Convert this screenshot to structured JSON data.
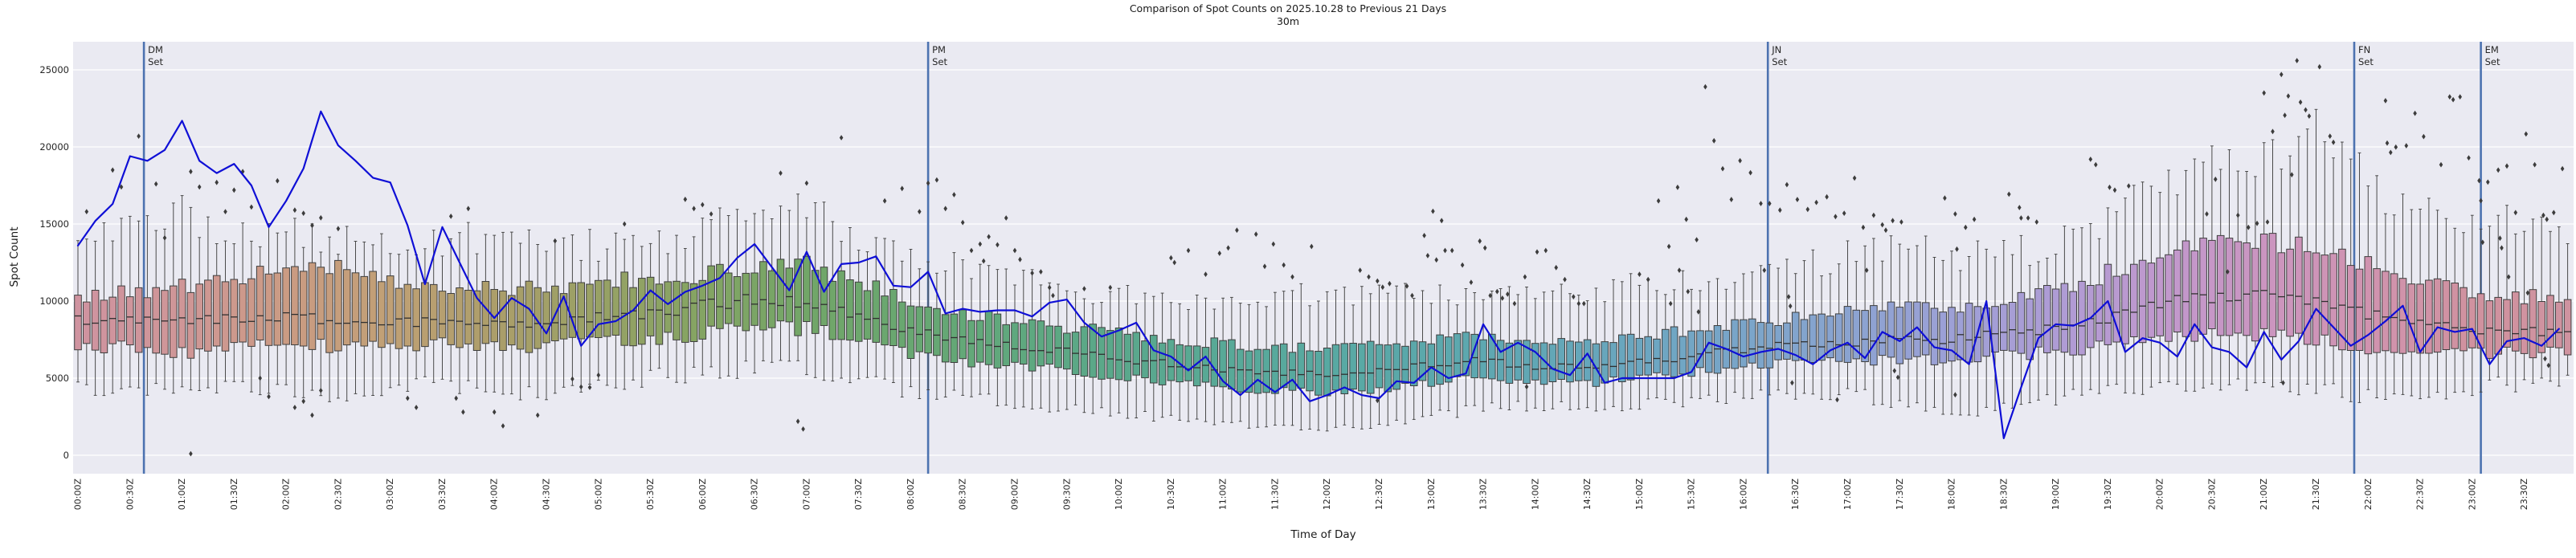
{
  "figure": {
    "title": "Comparison of Spot Counts on 2025.10.28 to Previous 21 Days",
    "subtitle": "30m",
    "xlabel": "Time of Day",
    "ylabel": "Spot Count"
  },
  "chart_data": {
    "type": "boxplot+line",
    "bin_minutes": 5,
    "bins": 288,
    "ylim": [
      -1200,
      27000
    ],
    "yticks": [
      0,
      5000,
      10000,
      15000,
      20000,
      25000
    ],
    "grid": "horizontal-white",
    "legend": "none",
    "x_tick_labels": [
      "00:00Z",
      "00:30Z",
      "01:00Z",
      "01:30Z",
      "02:00Z",
      "02:30Z",
      "03:00Z",
      "03:30Z",
      "04:00Z",
      "04:30Z",
      "05:00Z",
      "05:30Z",
      "06:00Z",
      "06:30Z",
      "07:00Z",
      "07:30Z",
      "08:00Z",
      "08:30Z",
      "09:00Z",
      "09:30Z",
      "10:00Z",
      "10:30Z",
      "11:00Z",
      "11:30Z",
      "12:00Z",
      "12:30Z",
      "13:00Z",
      "13:30Z",
      "14:00Z",
      "14:30Z",
      "15:00Z",
      "15:30Z",
      "16:00Z",
      "16:30Z",
      "17:00Z",
      "17:30Z",
      "18:00Z",
      "18:30Z",
      "19:00Z",
      "19:30Z",
      "20:00Z",
      "20:30Z",
      "21:00Z",
      "21:30Z",
      "22:00Z",
      "22:30Z",
      "23:00Z",
      "23:30Z"
    ],
    "event_lines": [
      {
        "lines": [
          "DM",
          "Set"
        ],
        "minute": 38
      },
      {
        "lines": [
          "PM",
          "Set"
        ],
        "minute": 490
      },
      {
        "lines": [
          "JN",
          "Set"
        ],
        "minute": 974
      },
      {
        "lines": [
          "FN",
          "Set"
        ],
        "minute": 1312
      },
      {
        "lines": [
          "EM",
          "Set"
        ],
        "minute": 1385
      }
    ],
    "line_series": {
      "name": "2025.10.28",
      "step_minutes": 10,
      "values": [
        13600,
        15200,
        16300,
        19400,
        19100,
        19800,
        21700,
        19100,
        18300,
        18900,
        17500,
        14800,
        16500,
        18600,
        22300,
        20100,
        19100,
        18000,
        17700,
        14900,
        11100,
        14800,
        12500,
        10200,
        8900,
        10200,
        9500,
        7900,
        10300,
        7100,
        8500,
        8700,
        9400,
        10700,
        9800,
        10600,
        11000,
        11500,
        12800,
        13700,
        12200,
        10700,
        13200,
        10600,
        12400,
        12500,
        12900,
        11000,
        10900,
        11900,
        9200,
        9500,
        9300,
        9400,
        9400,
        9000,
        9900,
        10100,
        8600,
        7700,
        8100,
        8600,
        6800,
        6400,
        5500,
        6400,
        4800,
        3900,
        4900,
        4100,
        4900,
        3500,
        3900,
        4400,
        3900,
        3700,
        4800,
        4700,
        5700,
        5000,
        5300,
        8500,
        6700,
        7300,
        6700,
        5600,
        5200,
        6600,
        4700,
        5000,
        5000,
        5000,
        5000,
        5400,
        7300,
        6900,
        6400,
        6700,
        6900,
        6500,
        5900,
        6800,
        7300,
        6300,
        8000,
        7400,
        8300,
        7000,
        6800,
        5900,
        10000,
        1100,
        4400,
        7600,
        8500,
        8400,
        8900,
        10000,
        6700,
        7600,
        7300,
        6400,
        8500,
        7000,
        6700,
        5700,
        8000,
        6200,
        7400,
        9500,
        8300,
        7100,
        7800,
        8700,
        9700,
        6700,
        8300,
        8000,
        8200,
        5900,
        7400,
        7600,
        7100,
        8200
      ]
    },
    "box_series": {
      "name": "previous 21 days distribution",
      "anchor_step_minutes": 30,
      "anchors": {
        "median": [
          8700,
          8700,
          8600,
          8900,
          9000,
          8700,
          8500,
          8800,
          8500,
          8600,
          9000,
          9200,
          9700,
          10100,
          9900,
          9000,
          8100,
          7400,
          7100,
          6700,
          6300,
          5900,
          5600,
          5400,
          5300,
          5500,
          5900,
          6200,
          5700,
          5700,
          6100,
          6400,
          6900,
          7200,
          7300,
          7600,
          7500,
          7900,
          8200,
          8800,
          9800,
          10300,
          10400,
          10000,
          9100,
          8500,
          8200,
          8000,
          8000
        ],
        "q1": [
          7000,
          7100,
          6600,
          7100,
          7300,
          7000,
          7100,
          7300,
          7000,
          7100,
          7500,
          7400,
          7900,
          8300,
          8200,
          7500,
          6600,
          6100,
          5900,
          5500,
          5100,
          4700,
          4400,
          4200,
          4100,
          4300,
          4700,
          5100,
          4800,
          4700,
          5000,
          5300,
          5700,
          6000,
          6100,
          6300,
          6100,
          6500,
          6700,
          7100,
          7600,
          7900,
          7800,
          7500,
          6700,
          6400,
          6600,
          6700,
          6800
        ],
        "q3": [
          10400,
          10600,
          10900,
          11400,
          12000,
          12300,
          11300,
          11000,
          10700,
          10800,
          11200,
          11500,
          11700,
          12000,
          12400,
          11300,
          10100,
          9100,
          8800,
          8300,
          7900,
          7500,
          7200,
          7000,
          6900,
          7100,
          7500,
          7700,
          7300,
          7400,
          7800,
          8100,
          8600,
          8900,
          9200,
          9600,
          9400,
          10000,
          10700,
          11800,
          13000,
          13700,
          13800,
          13400,
          12400,
          11100,
          10600,
          10300,
          10200
        ],
        "whisker_low": [
          4400,
          4300,
          4000,
          4400,
          4200,
          3300,
          4500,
          4700,
          4100,
          3900,
          4500,
          5000,
          5300,
          5700,
          5500,
          5200,
          4100,
          3900,
          3400,
          3000,
          2700,
          2400,
          2100,
          1900,
          1800,
          2000,
          2500,
          3100,
          3200,
          3100,
          3300,
          3500,
          3700,
          3900,
          4000,
          3400,
          2800,
          3000,
          3700,
          4100,
          4500,
          4600,
          4500,
          4300,
          3800,
          3600,
          4400,
          4700,
          4800
        ],
        "whisker_high": [
          13900,
          14600,
          15800,
          14300,
          14500,
          14000,
          13600,
          14000,
          14300,
          13700,
          13600,
          14100,
          14400,
          15900,
          16000,
          14000,
          13300,
          12000,
          11500,
          10800,
          10400,
          10100,
          9800,
          10200,
          10400,
          10600,
          10500,
          10400,
          10200,
          10600,
          11100,
          11300,
          11600,
          12000,
          13000,
          14000,
          12800,
          13200,
          13500,
          15300,
          17500,
          18800,
          19500,
          21500,
          17500,
          16000,
          15500,
          15000,
          14500
        ]
      }
    },
    "outliers": [
      [
        5,
        15800
      ],
      [
        20,
        18500
      ],
      [
        25,
        17400
      ],
      [
        35,
        20700
      ],
      [
        45,
        17600
      ],
      [
        50,
        14100
      ],
      [
        65,
        18400
      ],
      [
        70,
        17400
      ],
      [
        80,
        17700
      ],
      [
        85,
        15800
      ],
      [
        90,
        17200
      ],
      [
        95,
        18400
      ],
      [
        65,
        100
      ],
      [
        105,
        5000
      ],
      [
        110,
        3800
      ],
      [
        100,
        16100
      ],
      [
        115,
        17800
      ],
      [
        125,
        15900
      ],
      [
        130,
        15700
      ],
      [
        135,
        14900
      ],
      [
        140,
        15400
      ],
      [
        150,
        14700
      ],
      [
        125,
        3100
      ],
      [
        130,
        3500
      ],
      [
        135,
        2600
      ],
      [
        140,
        4200
      ],
      [
        190,
        3700
      ],
      [
        195,
        3100
      ],
      [
        215,
        15500
      ],
      [
        218,
        3700
      ],
      [
        222,
        2800
      ],
      [
        225,
        16000
      ],
      [
        240,
        2800
      ],
      [
        245,
        1900
      ],
      [
        265,
        2600
      ],
      [
        275,
        13900
      ],
      [
        285,
        4950
      ],
      [
        290,
        4430
      ],
      [
        295,
        4400
      ],
      [
        300,
        5200
      ],
      [
        315,
        15000
      ],
      [
        350,
        16600
      ],
      [
        355,
        16000
      ],
      [
        360,
        16250
      ],
      [
        365,
        15650
      ],
      [
        405,
        18300
      ],
      [
        420,
        17650
      ],
      [
        415,
        2200
      ],
      [
        418,
        1700
      ],
      [
        440,
        20600
      ],
      [
        465,
        16500
      ],
      [
        475,
        17300
      ],
      [
        485,
        15800
      ],
      [
        490,
        17650
      ],
      [
        495,
        17860
      ],
      [
        500,
        16000
      ],
      [
        505,
        16900
      ],
      [
        510,
        15100
      ],
      [
        515,
        13280
      ],
      [
        520,
        13700
      ],
      [
        522,
        12600
      ],
      [
        525,
        14170
      ],
      [
        530,
        13650
      ],
      [
        535,
        15390
      ],
      [
        540,
        13280
      ],
      [
        543,
        12700
      ],
      [
        550,
        11820
      ],
      [
        555,
        11900
      ],
      [
        560,
        10880
      ],
      [
        562,
        10360
      ],
      [
        580,
        10800
      ],
      [
        595,
        10880
      ],
      [
        630,
        12800
      ],
      [
        632,
        12500
      ],
      [
        640,
        13280
      ],
      [
        650,
        11740
      ],
      [
        658,
        13100
      ],
      [
        663,
        13450
      ],
      [
        668,
        14600
      ],
      [
        679,
        14340
      ],
      [
        684,
        12250
      ],
      [
        689,
        13700
      ],
      [
        695,
        12340
      ],
      [
        700,
        11570
      ],
      [
        711,
        13540
      ],
      [
        739,
        12000
      ],
      [
        744,
        11570
      ],
      [
        749,
        11300
      ],
      [
        752,
        10900
      ],
      [
        756,
        11130
      ],
      [
        766,
        10970
      ],
      [
        769,
        10360
      ],
      [
        749,
        3550
      ],
      [
        776,
        14250
      ],
      [
        778,
        12950
      ],
      [
        781,
        15830
      ],
      [
        783,
        12670
      ],
      [
        786,
        15220
      ],
      [
        788,
        13280
      ],
      [
        792,
        13280
      ],
      [
        798,
        12340
      ],
      [
        803,
        11220
      ],
      [
        808,
        13890
      ],
      [
        811,
        13450
      ],
      [
        814,
        10360
      ],
      [
        818,
        10620
      ],
      [
        821,
        10190
      ],
      [
        824,
        10450
      ],
      [
        828,
        9840
      ],
      [
        834,
        11570
      ],
      [
        835,
        4440
      ],
      [
        841,
        13190
      ],
      [
        846,
        13280
      ],
      [
        852,
        12170
      ],
      [
        857,
        11400
      ],
      [
        862,
        10280
      ],
      [
        865,
        9840
      ],
      [
        868,
        9840
      ],
      [
        900,
        11740
      ],
      [
        905,
        11400
      ],
      [
        911,
        16500
      ],
      [
        917,
        13540
      ],
      [
        918,
        9840
      ],
      [
        922,
        17380
      ],
      [
        923,
        12000
      ],
      [
        927,
        15300
      ],
      [
        928,
        10620
      ],
      [
        933,
        13980
      ],
      [
        934,
        9300
      ],
      [
        938,
        23900
      ],
      [
        943,
        20400
      ],
      [
        948,
        18590
      ],
      [
        953,
        16590
      ],
      [
        958,
        19110
      ],
      [
        964,
        18330
      ],
      [
        970,
        16330
      ],
      [
        972,
        12000
      ],
      [
        975,
        16330
      ],
      [
        981,
        15900
      ],
      [
        985,
        17550
      ],
      [
        986,
        10280
      ],
      [
        987,
        9670
      ],
      [
        988,
        4700
      ],
      [
        991,
        16590
      ],
      [
        997,
        15950
      ],
      [
        1002,
        16400
      ],
      [
        1008,
        16760
      ],
      [
        1013,
        15480
      ],
      [
        1014,
        3600
      ],
      [
        1018,
        15700
      ],
      [
        1024,
        17980
      ],
      [
        1029,
        14780
      ],
      [
        1031,
        12000
      ],
      [
        1035,
        15570
      ],
      [
        1040,
        14950
      ],
      [
        1042,
        14600
      ],
      [
        1046,
        15220
      ],
      [
        1051,
        15130
      ],
      [
        1047,
        5480
      ],
      [
        1049,
        5050
      ],
      [
        1076,
        16680
      ],
      [
        1082,
        15650
      ],
      [
        1083,
        13370
      ],
      [
        1082,
        3920
      ],
      [
        1088,
        14780
      ],
      [
        1093,
        15300
      ],
      [
        1113,
        16930
      ],
      [
        1119,
        16070
      ],
      [
        1120,
        15390
      ],
      [
        1124,
        15390
      ],
      [
        1129,
        15130
      ],
      [
        1160,
        19200
      ],
      [
        1163,
        18850
      ],
      [
        1171,
        17380
      ],
      [
        1174,
        17200
      ],
      [
        1182,
        17470
      ],
      [
        1227,
        15650
      ],
      [
        1232,
        17900
      ],
      [
        1239,
        11900
      ],
      [
        1245,
        15570
      ],
      [
        1251,
        14780
      ],
      [
        1256,
        15040
      ],
      [
        1262,
        15130
      ],
      [
        1260,
        23500
      ],
      [
        1265,
        21000
      ],
      [
        1270,
        24700
      ],
      [
        1272,
        22050
      ],
      [
        1274,
        23300
      ],
      [
        1276,
        18200
      ],
      [
        1279,
        25600
      ],
      [
        1281,
        22900
      ],
      [
        1284,
        22400
      ],
      [
        1286,
        22000
      ],
      [
        1292,
        25200
      ],
      [
        1298,
        20700
      ],
      [
        1300,
        20300
      ],
      [
        1271,
        4700
      ],
      [
        1330,
        23000
      ],
      [
        1331,
        20250
      ],
      [
        1333,
        19640
      ],
      [
        1336,
        19990
      ],
      [
        1342,
        20080
      ],
      [
        1347,
        22180
      ],
      [
        1352,
        20670
      ],
      [
        1362,
        18850
      ],
      [
        1367,
        23250
      ],
      [
        1369,
        23070
      ],
      [
        1373,
        23250
      ],
      [
        1378,
        19290
      ],
      [
        1384,
        17810
      ],
      [
        1385,
        16510
      ],
      [
        1386,
        13810
      ],
      [
        1389,
        17720
      ],
      [
        1395,
        18500
      ],
      [
        1396,
        14080
      ],
      [
        1397,
        13450
      ],
      [
        1400,
        18760
      ],
      [
        1401,
        11570
      ],
      [
        1405,
        15740
      ],
      [
        1411,
        20840
      ],
      [
        1412,
        10530
      ],
      [
        1416,
        18850
      ],
      [
        1421,
        15570
      ],
      [
        1423,
        15300
      ],
      [
        1422,
        6260
      ],
      [
        1424,
        5830
      ],
      [
        1427,
        15740
      ],
      [
        1432,
        18590
      ]
    ],
    "palette_hourly": [
      "#cf93a0",
      "#cf9697",
      "#cb9b83",
      "#c0a075",
      "#ac9e6a",
      "#98a165",
      "#84a463",
      "#72a668",
      "#68a771",
      "#5fa87e",
      "#5aa88b",
      "#58a997",
      "#58a9a2",
      "#5ba8ac",
      "#61a7b5",
      "#6ba6c0",
      "#7aa5c9",
      "#8aa3d0",
      "#9da0d6",
      "#ae9cd5",
      "#c098cd",
      "#cb95c0",
      "#d093af",
      "#d0929f"
    ],
    "colors": {
      "plot_bg": "#eaeaf2",
      "grid": "#ffffff",
      "line": "#0f0fd6",
      "event_line": "#4c72b0",
      "box_edge": "#3f3f3f",
      "whisker": "#4a4a4a",
      "median": "#303030",
      "flier": "#3c3c3c",
      "text": "#262626"
    }
  }
}
